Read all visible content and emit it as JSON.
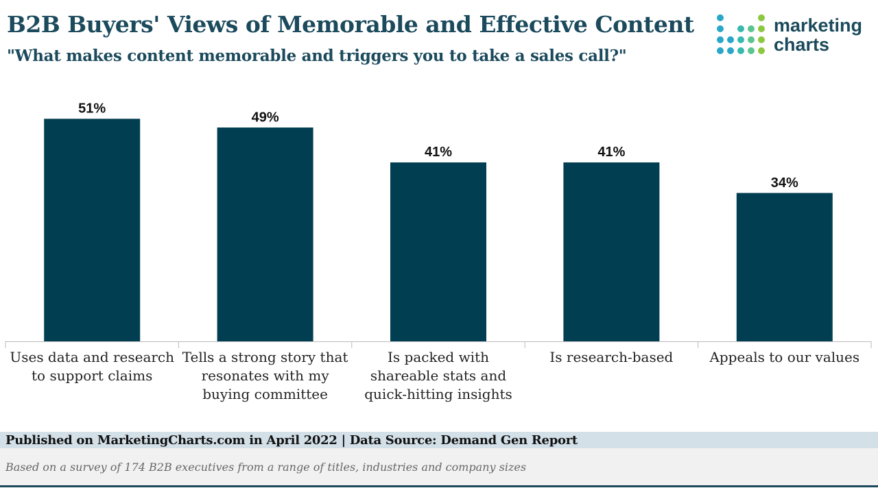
{
  "chart_data": {
    "type": "bar",
    "title": "B2B Buyers' Views of Memorable and Effective Content",
    "subtitle": "\"What makes content memorable and triggers you to take a sales call?\"",
    "categories": [
      "Uses data and research to support claims",
      "Tells a strong story that resonates with my buying committee",
      "Is packed with shareable stats and quick-hitting insights",
      "Is research-based",
      "Appeals to our values"
    ],
    "values": [
      51,
      49,
      41,
      41,
      34
    ],
    "value_labels": [
      "51%",
      "49%",
      "41%",
      "41%",
      "34%"
    ],
    "color": "#023e52",
    "ylim": [
      0,
      60
    ],
    "logo": [
      "marketing",
      "charts"
    ],
    "source": "Published on MarketingCharts.com in April 2022 | Data Source: Demand Gen Report",
    "note": "Based on a survey of 174 B2B executives from a range of titles, industries and company sizes"
  }
}
